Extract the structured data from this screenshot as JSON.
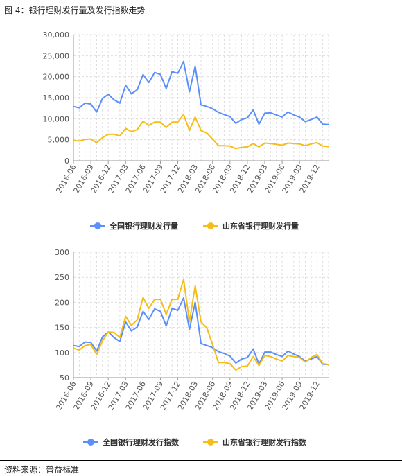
{
  "figure": {
    "title": "图 4：银行理财发行量及发行指数走势",
    "source": "资料来源：普益标准"
  },
  "colors": {
    "blue": "#5b8ff9",
    "yellow": "#f6bd16",
    "grid": "#dddddd",
    "axis": "#999999"
  },
  "chart_data": [
    {
      "type": "line",
      "title": "",
      "xlabel": "",
      "ylabel": "",
      "ylim": [
        0,
        30000
      ],
      "yticks": [
        "0",
        "5,000",
        "10,000",
        "15,000",
        "20,000",
        "25,000",
        "30,000"
      ],
      "ytick_values": [
        0,
        5000,
        10000,
        15000,
        20000,
        25000,
        30000
      ],
      "x": [
        "2016-06",
        "2016-07",
        "2016-08",
        "2016-09",
        "2016-10",
        "2016-11",
        "2016-12",
        "2017-01",
        "2017-02",
        "2017-03",
        "2017-04",
        "2017-05",
        "2017-06",
        "2017-07",
        "2017-08",
        "2017-09",
        "2017-10",
        "2017-11",
        "2017-12",
        "2018-01",
        "2018-02",
        "2018-03",
        "2018-04",
        "2018-05",
        "2018-06",
        "2018-07",
        "2018-08",
        "2018-09",
        "2018-10",
        "2018-11",
        "2018-12",
        "2019-01",
        "2019-02",
        "2019-03",
        "2019-04",
        "2019-05",
        "2019-06",
        "2019-07",
        "2019-08",
        "2019-09",
        "2019-10",
        "2019-11",
        "2019-12",
        "2020-01",
        "2020-02"
      ],
      "xtick_labels": [
        "2016-06",
        "2016-09",
        "2016-12",
        "2017-03",
        "2017-06",
        "2017-09",
        "2017-12",
        "2018-03",
        "2018-06",
        "2018-09",
        "2018-12",
        "2019-03",
        "2019-06",
        "2019-09",
        "2019-12"
      ],
      "legend_position": "bottom",
      "series": [
        {
          "name": "全国银行理财发行量",
          "color": "#5b8ff9",
          "values": [
            12900,
            12600,
            13700,
            13500,
            11600,
            14800,
            15800,
            14500,
            13700,
            18000,
            15900,
            16900,
            20500,
            18600,
            21000,
            20500,
            17200,
            21200,
            20800,
            23600,
            16400,
            22500,
            13300,
            12900,
            12400,
            11500,
            11000,
            10500,
            8900,
            9800,
            10200,
            12100,
            8700,
            11300,
            11400,
            10900,
            10400,
            11600,
            10900,
            10400,
            9300,
            9800,
            10400,
            8700,
            8600
          ]
        },
        {
          "name": "山东省银行理财发行量",
          "color": "#f6bd16",
          "values": [
            4800,
            4700,
            5100,
            5200,
            4300,
            5500,
            6300,
            6300,
            5900,
            7700,
            6900,
            7400,
            9400,
            8400,
            9200,
            9200,
            7900,
            9200,
            9200,
            11000,
            7200,
            10400,
            7200,
            6600,
            5200,
            3600,
            3600,
            3500,
            2900,
            3200,
            3300,
            4100,
            3300,
            4200,
            4100,
            3900,
            3700,
            4200,
            4100,
            4000,
            3600,
            4000,
            4300,
            3500,
            3400
          ]
        }
      ]
    },
    {
      "type": "line",
      "title": "",
      "xlabel": "",
      "ylabel": "",
      "ylim": [
        50,
        300
      ],
      "yticks": [
        "50",
        "100",
        "150",
        "200",
        "250",
        "300"
      ],
      "ytick_values": [
        50,
        100,
        150,
        200,
        250,
        300
      ],
      "x": [
        "2016-06",
        "2016-07",
        "2016-08",
        "2016-09",
        "2016-10",
        "2016-11",
        "2016-12",
        "2017-01",
        "2017-02",
        "2017-03",
        "2017-04",
        "2017-05",
        "2017-06",
        "2017-07",
        "2017-08",
        "2017-09",
        "2017-10",
        "2017-11",
        "2017-12",
        "2018-01",
        "2018-02",
        "2018-03",
        "2018-04",
        "2018-05",
        "2018-06",
        "2018-07",
        "2018-08",
        "2018-09",
        "2018-10",
        "2018-11",
        "2018-12",
        "2019-01",
        "2019-02",
        "2019-03",
        "2019-04",
        "2019-05",
        "2019-06",
        "2019-07",
        "2019-08",
        "2019-09",
        "2019-10",
        "2019-11",
        "2019-12",
        "2020-01",
        "2020-02"
      ],
      "xtick_labels": [
        "2016-06",
        "2016-09",
        "2016-12",
        "2017-03",
        "2017-06",
        "2017-09",
        "2017-12",
        "2018-03",
        "2018-06",
        "2018-09",
        "2018-12",
        "2019-03",
        "2019-06",
        "2019-09",
        "2019-12"
      ],
      "legend_position": "bottom",
      "series": [
        {
          "name": "全国银行理财发行指数",
          "color": "#5b8ff9",
          "values": [
            114,
            112,
            121,
            120,
            103,
            131,
            141,
            130,
            122,
            161,
            143,
            151,
            182,
            166,
            187,
            182,
            153,
            188,
            184,
            209,
            146,
            200,
            118,
            114,
            110,
            102,
            98,
            93,
            79,
            87,
            90,
            107,
            77,
            101,
            101,
            96,
            92,
            103,
            97,
            92,
            83,
            87,
            92,
            77,
            76
          ]
        },
        {
          "name": "山东省银行理财发行指数",
          "color": "#f6bd16",
          "values": [
            109,
            105,
            114,
            116,
            96,
            123,
            141,
            140,
            130,
            172,
            154,
            165,
            210,
            188,
            206,
            206,
            176,
            206,
            206,
            246,
            161,
            233,
            161,
            149,
            116,
            80,
            80,
            78,
            65,
            72,
            73,
            92,
            74,
            94,
            92,
            87,
            83,
            94,
            92,
            90,
            81,
            90,
            96,
            78,
            76
          ]
        }
      ]
    }
  ]
}
